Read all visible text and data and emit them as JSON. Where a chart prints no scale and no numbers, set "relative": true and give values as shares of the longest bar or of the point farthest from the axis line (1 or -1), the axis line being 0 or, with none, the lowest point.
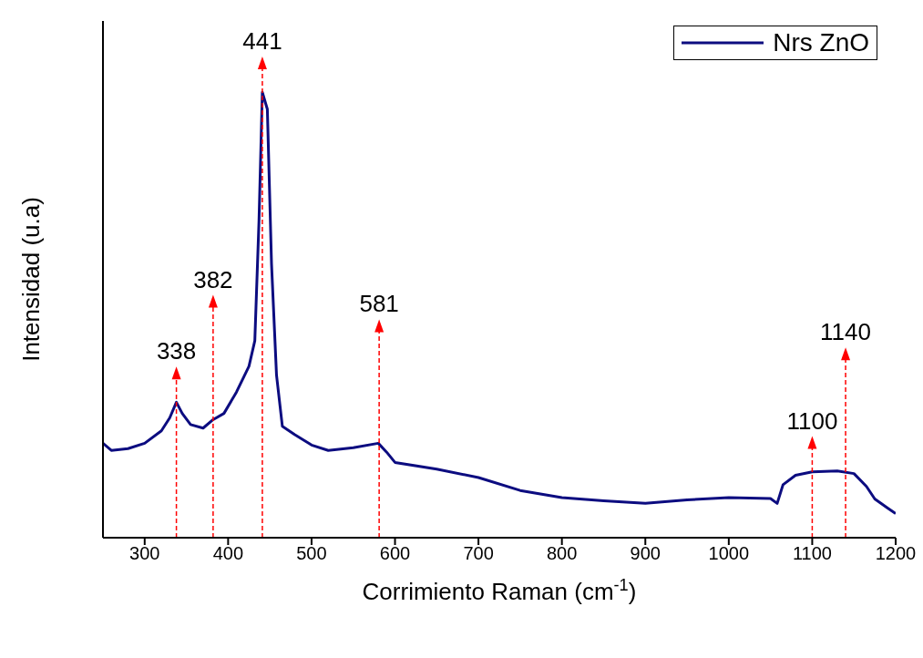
{
  "chart_data": {
    "type": "line",
    "xlabel": "Corrimiento Raman (cm$^{-1}$)",
    "ylabel": "Intensidad (u.a)",
    "relative": true,
    "x": [
      250,
      260,
      280,
      300,
      320,
      330,
      338,
      345,
      355,
      370,
      382,
      395,
      410,
      425,
      432,
      437,
      441,
      447,
      452,
      458,
      465,
      480,
      500,
      520,
      550,
      580,
      590,
      600,
      650,
      700,
      750,
      800,
      850,
      900,
      950,
      1000,
      1050,
      1058,
      1065,
      1080,
      1100,
      1130,
      1150,
      1165,
      1175,
      1190,
      1200
    ],
    "series": [
      {
        "name": "Nrs ZnO",
        "color": "#0c0c80",
        "values": [
          0.212,
          0.196,
          0.2,
          0.212,
          0.24,
          0.269,
          0.304,
          0.279,
          0.254,
          0.246,
          0.265,
          0.279,
          0.327,
          0.385,
          0.442,
          0.712,
          1.0,
          0.962,
          0.615,
          0.365,
          0.25,
          0.231,
          0.208,
          0.196,
          0.202,
          0.212,
          0.192,
          0.169,
          0.154,
          0.135,
          0.106,
          0.09,
          0.083,
          0.077,
          0.085,
          0.09,
          0.088,
          0.077,
          0.119,
          0.14,
          0.148,
          0.15,
          0.144,
          0.115,
          0.087,
          0.067,
          0.054
        ]
      }
    ],
    "xlim": [
      250,
      1200
    ],
    "xticks": [
      300,
      400,
      500,
      600,
      700,
      800,
      900,
      1000,
      1100,
      1200
    ],
    "ref_lines": [
      {
        "axis": "x",
        "value": 338,
        "label": "338",
        "color": "#ff0000",
        "line_style": "dashed"
      },
      {
        "axis": "x",
        "value": 382,
        "label": "382",
        "color": "#ff0000",
        "line_style": "dashed"
      },
      {
        "axis": "x",
        "value": 441,
        "label": "441",
        "color": "#ff0000",
        "line_style": "dashed"
      },
      {
        "axis": "x",
        "value": 581,
        "label": "581",
        "color": "#ff0000",
        "line_style": "dashed"
      },
      {
        "axis": "x",
        "value": 1100,
        "label": "1100",
        "color": "#ff0000",
        "line_style": "dashed"
      },
      {
        "axis": "x",
        "value": 1140,
        "label": "1140",
        "color": "#ff0000",
        "line_style": "dashed"
      }
    ],
    "legend": "top right",
    "grid": false,
    "marker": "none",
    "line_style": "solid"
  }
}
